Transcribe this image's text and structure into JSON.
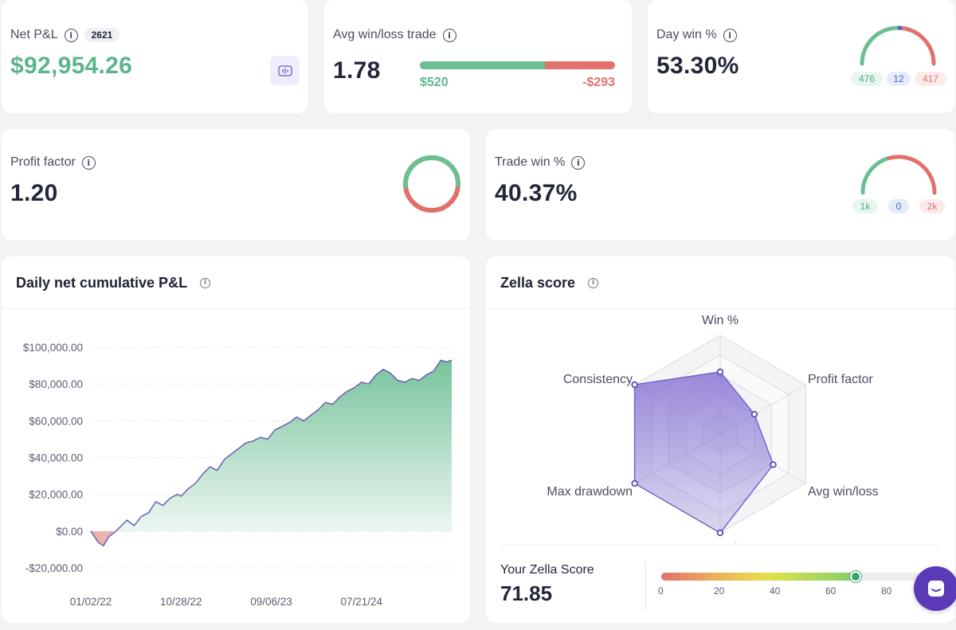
{
  "net_pnl": {
    "label": "Net P&L",
    "trade_count": "2621",
    "value": "$92,954.26",
    "info_icon": "info-icon",
    "action_icon": "waveform-icon"
  },
  "avg_win_loss": {
    "label": "Avg win/loss trade",
    "value": "1.78",
    "avg_win": "$520",
    "avg_loss": "-$293",
    "win_fraction": 0.64
  },
  "day_win": {
    "label": "Day win %",
    "value": "53.30%",
    "wins": "476",
    "breakeven": "12",
    "losses": "417"
  },
  "profit_factor": {
    "label": "Profit factor",
    "value": "1.20",
    "gross_profit_fraction": 0.545
  },
  "trade_win": {
    "label": "Trade win %",
    "value": "40.37%",
    "wins": "1k",
    "breakeven": "0",
    "losses": "2k"
  },
  "cumulative_chart": {
    "title": "Daily net cumulative P&L",
    "info_icon": "info-icon",
    "color_line": "#6a5fb5",
    "color_fill_pos": "#5fb98a",
    "color_fill_neg": "#e07a7a"
  },
  "zella": {
    "title": "Zella score",
    "info_icon": "info-icon",
    "axis_labels": [
      "Win %",
      "Profit factor",
      "Avg win/loss",
      "Recovery factor",
      "Max drawdown",
      "Consistency"
    ],
    "your_score_label": "Your Zella Score",
    "your_score": "71.85",
    "scale_ticks": [
      "0",
      "20",
      "40",
      "60",
      "80"
    ],
    "score_fraction": 0.7185
  },
  "chat_icon": "chat-icon",
  "chart_data": [
    {
      "type": "area",
      "title": "Daily net cumulative P&L",
      "xlabel": "",
      "ylabel": "",
      "x_tick_labels": [
        "01/02/22",
        "10/28/22",
        "09/06/23",
        "07/21/24"
      ],
      "y_tick_labels": [
        "$100,000.00",
        "$80,000.00",
        "$60,000.00",
        "$40,000.00",
        "$20,000.00",
        "$0.00",
        "-$20,000.00"
      ],
      "y_ticks": [
        100000,
        80000,
        60000,
        40000,
        20000,
        0,
        -20000
      ],
      "ylim": [
        -20000,
        100000
      ],
      "xlim": [
        0,
        100
      ],
      "x": [
        0,
        2,
        3.5,
        5,
        7,
        9,
        10,
        12,
        14,
        16,
        18,
        20,
        22,
        24,
        25,
        27,
        29,
        31,
        33,
        35,
        37,
        39,
        41,
        43,
        45,
        47,
        49,
        51,
        53,
        55,
        57,
        59,
        61,
        63,
        65,
        67,
        69,
        71,
        73,
        75,
        77,
        79,
        81,
        83,
        85,
        87,
        89,
        91,
        93,
        95,
        97,
        98.5,
        100
      ],
      "y": [
        0,
        -6000,
        -8000,
        -3000,
        0,
        4000,
        6000,
        3000,
        8000,
        10000,
        16000,
        14000,
        18000,
        20000,
        19000,
        23000,
        26000,
        31000,
        35000,
        33000,
        39000,
        42000,
        45000,
        48000,
        49000,
        51000,
        50000,
        55000,
        57000,
        59000,
        62000,
        60000,
        63000,
        66000,
        70000,
        69000,
        73000,
        76000,
        78000,
        81000,
        80000,
        85000,
        88000,
        86000,
        82000,
        81000,
        83000,
        82000,
        85000,
        87000,
        93000,
        92000,
        93000
      ]
    },
    {
      "type": "radar",
      "title": "Zella score",
      "categories": [
        "Win %",
        "Profit factor",
        "Avg win/loss",
        "Recovery factor",
        "Max drawdown",
        "Consistency"
      ],
      "values": [
        63,
        40,
        62,
        100,
        100,
        100
      ],
      "ylim": [
        0,
        100
      ]
    }
  ]
}
